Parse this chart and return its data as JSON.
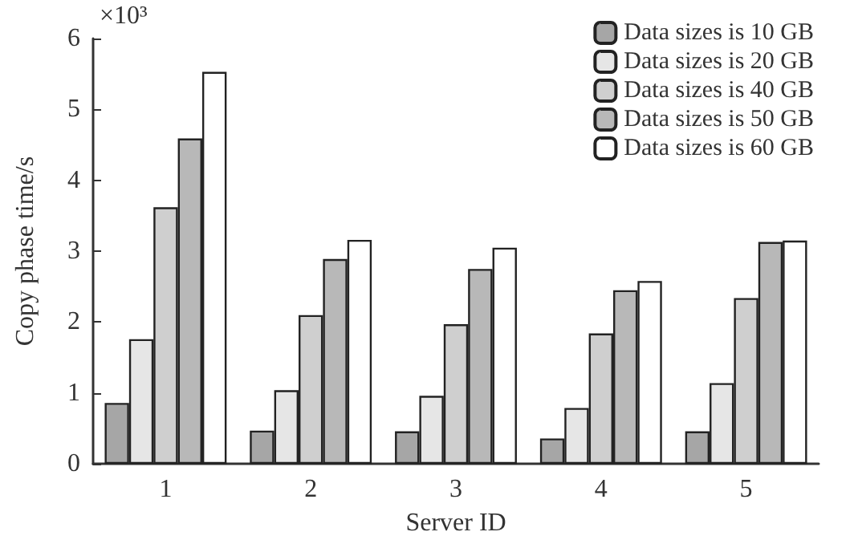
{
  "chart_data": {
    "type": "bar",
    "xlabel": "Server ID",
    "ylabel": "Copy phase time/s",
    "annotations": [
      "×10³"
    ],
    "categories": [
      "1",
      "2",
      "3",
      "4",
      "5"
    ],
    "series": [
      {
        "name": "Data sizes is 10 GB",
        "color": "#a6a6a6",
        "values": [
          0.86,
          0.47,
          0.46,
          0.36,
          0.46
        ]
      },
      {
        "name": "Data sizes is 20 GB",
        "color": "#e6e6e6",
        "values": [
          1.76,
          1.04,
          0.96,
          0.79,
          1.14
        ]
      },
      {
        "name": "Data sizes is 40 GB",
        "color": "#cfcfcf",
        "values": [
          3.62,
          2.1,
          1.97,
          1.84,
          2.34
        ]
      },
      {
        "name": "Data sizes is 50 GB",
        "color": "#b8b8b8",
        "values": [
          4.59,
          2.89,
          2.75,
          2.45,
          3.13
        ]
      },
      {
        "name": "Data sizes is 60 GB",
        "color": "#ffffff",
        "values": [
          5.53,
          3.16,
          3.05,
          2.58,
          3.15
        ]
      }
    ],
    "ylim": [
      0,
      6
    ],
    "yticks": [
      0,
      1,
      2,
      3,
      4,
      5,
      6
    ],
    "grid": false,
    "legend": "top right"
  }
}
